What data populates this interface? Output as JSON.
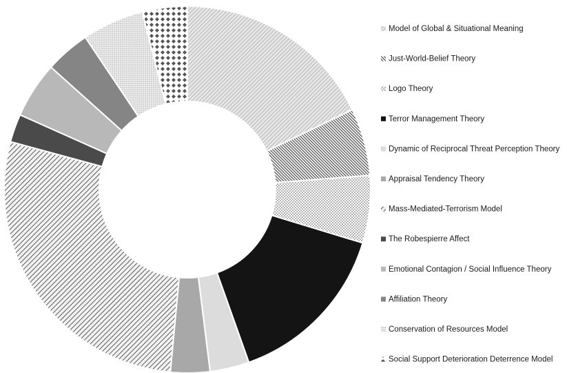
{
  "chart_data": {
    "type": "pie",
    "variant": "donut",
    "title": "",
    "legend_position": "right",
    "series": [
      {
        "name": "Model of Global & Situational Meaning",
        "value": 18.0,
        "pattern": "diag-light"
      },
      {
        "name": "Just-World-Belief Theory",
        "value": 6.0,
        "pattern": "diag-dark"
      },
      {
        "name": "Logo Theory",
        "value": 6.0,
        "pattern": "dots"
      },
      {
        "name": "Terror Management Theory",
        "value": 15.0,
        "pattern": "solid-black"
      },
      {
        "name": "Dynamic of Reciprocal Threat Perception Theory",
        "value": 3.5,
        "pattern": "solid-light"
      },
      {
        "name": "Appraisal Tendency Theory",
        "value": 3.5,
        "pattern": "solid-mid"
      },
      {
        "name": "Mass-Mediated-Terrorism Model",
        "value": 28.0,
        "pattern": "diag-wide"
      },
      {
        "name": "The Robespierre Affect",
        "value": 2.5,
        "pattern": "solid-dark"
      },
      {
        "name": "Emotional Contagion / Social Influence Theory",
        "value": 5.0,
        "pattern": "solid-light2"
      },
      {
        "name": "Affiliation Theory",
        "value": 4.0,
        "pattern": "solid-mid2"
      },
      {
        "name": "Conservation of Resources Model",
        "value": 5.5,
        "pattern": "dots-fine"
      },
      {
        "name": "Social Support Deterioration Deterrence Model",
        "value": 4.0,
        "pattern": "diamonds"
      }
    ],
    "colors": {
      "solid-black": "#141414",
      "solid-light": "#dcdcdc",
      "solid-mid": "#a8a8a8",
      "solid-dark": "#4a4a4a",
      "solid-light2": "#b8b8b8",
      "solid-mid2": "#858585"
    }
  }
}
